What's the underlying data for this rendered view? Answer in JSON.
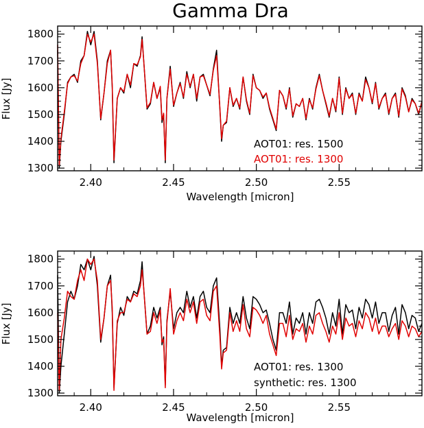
{
  "figure_title": "Gamma Dra",
  "colors": {
    "black": "#000000",
    "red": "#e00000",
    "axis": "#000000",
    "background": "#ffffff"
  },
  "chart_data": [
    {
      "type": "line",
      "title": "Gamma Dra",
      "xlabel": "Wavelength [micron]",
      "ylabel": "Flux [Jy]",
      "xlim": [
        2.38,
        2.6
      ],
      "ylim": [
        1290,
        1830
      ],
      "xticks": [
        2.4,
        2.45,
        2.5,
        2.55
      ],
      "xtick_labels": [
        "2.40",
        "2.45",
        "2.50",
        "2.55"
      ],
      "yticks": [
        1300,
        1400,
        1500,
        1600,
        1700,
        1800
      ],
      "ytick_labels": [
        "1300",
        "1400",
        "1500",
        "1600",
        "1700",
        "1800"
      ],
      "grid": false,
      "legend_position": "lower-right",
      "series": [
        {
          "name": "AOT01: res. 1500",
          "color": "#000000",
          "x": [
            2.38,
            2.381,
            2.382,
            2.384,
            2.386,
            2.388,
            2.39,
            2.392,
            2.394,
            2.396,
            2.398,
            2.4,
            2.402,
            2.404,
            2.406,
            2.408,
            2.41,
            2.412,
            2.413,
            2.414,
            2.416,
            2.418,
            2.42,
            2.422,
            2.424,
            2.426,
            2.428,
            2.43,
            2.431,
            2.432,
            2.434,
            2.436,
            2.438,
            2.44,
            2.442,
            2.443,
            2.444,
            2.445,
            2.446,
            2.448,
            2.45,
            2.452,
            2.454,
            2.456,
            2.458,
            2.46,
            2.462,
            2.464,
            2.466,
            2.468,
            2.47,
            2.472,
            2.474,
            2.476,
            2.478,
            2.479,
            2.48,
            2.482,
            2.484,
            2.486,
            2.488,
            2.49,
            2.492,
            2.494,
            2.496,
            2.498,
            2.5,
            2.502,
            2.504,
            2.506,
            2.508,
            2.51,
            2.512,
            2.514,
            2.516,
            2.518,
            2.52,
            2.522,
            2.524,
            2.526,
            2.528,
            2.53,
            2.532,
            2.534,
            2.536,
            2.538,
            2.54,
            2.542,
            2.544,
            2.546,
            2.548,
            2.55,
            2.552,
            2.554,
            2.556,
            2.558,
            2.56,
            2.562,
            2.564,
            2.566,
            2.568,
            2.57,
            2.572,
            2.574,
            2.576,
            2.578,
            2.58,
            2.582,
            2.584,
            2.586,
            2.588,
            2.59,
            2.592,
            2.594,
            2.596,
            2.598,
            2.6
          ],
          "y": [
            1740,
            1300,
            1400,
            1500,
            1620,
            1640,
            1650,
            1620,
            1700,
            1720,
            1810,
            1760,
            1810,
            1700,
            1480,
            1580,
            1700,
            1740,
            1600,
            1320,
            1560,
            1600,
            1580,
            1650,
            1600,
            1690,
            1680,
            1720,
            1790,
            1700,
            1520,
            1540,
            1620,
            1560,
            1600,
            1470,
            1500,
            1320,
            1560,
            1680,
            1530,
            1580,
            1620,
            1560,
            1660,
            1600,
            1650,
            1550,
            1640,
            1650,
            1610,
            1570,
            1670,
            1740,
            1520,
            1400,
            1460,
            1470,
            1600,
            1530,
            1560,
            1520,
            1640,
            1550,
            1500,
            1650,
            1600,
            1590,
            1560,
            1580,
            1520,
            1480,
            1440,
            1590,
            1570,
            1520,
            1600,
            1490,
            1540,
            1530,
            1560,
            1480,
            1560,
            1520,
            1600,
            1650,
            1590,
            1540,
            1490,
            1560,
            1510,
            1640,
            1500,
            1600,
            1560,
            1580,
            1500,
            1580,
            1550,
            1640,
            1600,
            1540,
            1620,
            1520,
            1560,
            1580,
            1500,
            1560,
            1580,
            1490,
            1600,
            1570,
            1510,
            1560,
            1540,
            1500,
            1550
          ],
          "note_values_estimated": true
        },
        {
          "name": "AOT01: res. 1300",
          "color": "#e00000",
          "x": [
            2.38,
            2.381,
            2.382,
            2.384,
            2.386,
            2.388,
            2.39,
            2.392,
            2.394,
            2.396,
            2.398,
            2.4,
            2.402,
            2.404,
            2.406,
            2.408,
            2.41,
            2.412,
            2.413,
            2.414,
            2.416,
            2.418,
            2.42,
            2.422,
            2.424,
            2.426,
            2.428,
            2.43,
            2.431,
            2.432,
            2.434,
            2.436,
            2.438,
            2.44,
            2.442,
            2.443,
            2.444,
            2.445,
            2.446,
            2.448,
            2.45,
            2.452,
            2.454,
            2.456,
            2.458,
            2.46,
            2.462,
            2.464,
            2.466,
            2.468,
            2.47,
            2.472,
            2.474,
            2.476,
            2.478,
            2.479,
            2.48,
            2.482,
            2.484,
            2.486,
            2.488,
            2.49,
            2.492,
            2.494,
            2.496,
            2.498,
            2.5,
            2.502,
            2.504,
            2.506,
            2.508,
            2.51,
            2.512,
            2.514,
            2.516,
            2.518,
            2.52,
            2.522,
            2.524,
            2.526,
            2.528,
            2.53,
            2.532,
            2.534,
            2.536,
            2.538,
            2.54,
            2.542,
            2.544,
            2.546,
            2.548,
            2.55,
            2.552,
            2.554,
            2.556,
            2.558,
            2.56,
            2.562,
            2.564,
            2.566,
            2.568,
            2.57,
            2.572,
            2.574,
            2.576,
            2.578,
            2.58,
            2.582,
            2.584,
            2.586,
            2.588,
            2.59,
            2.592,
            2.594,
            2.596,
            2.598,
            2.6
          ],
          "y": [
            1760,
            1310,
            1410,
            1510,
            1615,
            1640,
            1645,
            1625,
            1690,
            1720,
            1800,
            1770,
            1800,
            1690,
            1485,
            1580,
            1690,
            1740,
            1610,
            1330,
            1560,
            1600,
            1585,
            1650,
            1610,
            1690,
            1685,
            1715,
            1780,
            1700,
            1525,
            1545,
            1620,
            1560,
            1605,
            1480,
            1505,
            1330,
            1560,
            1670,
            1535,
            1580,
            1615,
            1565,
            1650,
            1605,
            1650,
            1560,
            1640,
            1645,
            1610,
            1575,
            1665,
            1720,
            1525,
            1410,
            1460,
            1475,
            1600,
            1535,
            1560,
            1525,
            1640,
            1555,
            1505,
            1645,
            1600,
            1590,
            1565,
            1580,
            1525,
            1485,
            1445,
            1590,
            1570,
            1525,
            1595,
            1495,
            1540,
            1530,
            1560,
            1485,
            1555,
            1525,
            1595,
            1645,
            1590,
            1545,
            1495,
            1560,
            1515,
            1635,
            1505,
            1595,
            1560,
            1575,
            1505,
            1575,
            1550,
            1630,
            1600,
            1545,
            1615,
            1525,
            1560,
            1575,
            1505,
            1560,
            1575,
            1495,
            1595,
            1565,
            1510,
            1555,
            1540,
            1505,
            1545
          ],
          "note_values_estimated": true
        }
      ],
      "legend": [
        "AOT01: res. 1500",
        "AOT01: res. 1300"
      ]
    },
    {
      "type": "line",
      "title": "",
      "xlabel": "Wavelength [micron]",
      "ylabel": "Flux [Jy]",
      "xlim": [
        2.38,
        2.6
      ],
      "ylim": [
        1290,
        1830
      ],
      "xticks": [
        2.4,
        2.45,
        2.5,
        2.55
      ],
      "xtick_labels": [
        "2.40",
        "2.45",
        "2.50",
        "2.55"
      ],
      "yticks": [
        1300,
        1400,
        1500,
        1600,
        1700,
        1800
      ],
      "ytick_labels": [
        "1300",
        "1400",
        "1500",
        "1600",
        "1700",
        "1800"
      ],
      "grid": false,
      "legend_position": "lower-right",
      "series": [
        {
          "name": "AOT01: res. 1300",
          "color": "#000000",
          "x": [
            2.38,
            2.381,
            2.382,
            2.384,
            2.386,
            2.388,
            2.39,
            2.392,
            2.394,
            2.396,
            2.398,
            2.4,
            2.402,
            2.404,
            2.406,
            2.408,
            2.41,
            2.412,
            2.413,
            2.414,
            2.416,
            2.418,
            2.42,
            2.422,
            2.424,
            2.426,
            2.428,
            2.43,
            2.431,
            2.432,
            2.434,
            2.436,
            2.438,
            2.44,
            2.442,
            2.443,
            2.444,
            2.445,
            2.446,
            2.448,
            2.45,
            2.452,
            2.454,
            2.456,
            2.458,
            2.46,
            2.462,
            2.464,
            2.466,
            2.468,
            2.47,
            2.472,
            2.474,
            2.476,
            2.478,
            2.479,
            2.48,
            2.482,
            2.484,
            2.486,
            2.488,
            2.49,
            2.492,
            2.494,
            2.496,
            2.498,
            2.5,
            2.502,
            2.504,
            2.506,
            2.508,
            2.51,
            2.512,
            2.514,
            2.516,
            2.518,
            2.52,
            2.522,
            2.524,
            2.526,
            2.528,
            2.53,
            2.532,
            2.534,
            2.536,
            2.538,
            2.54,
            2.542,
            2.544,
            2.546,
            2.548,
            2.55,
            2.552,
            2.554,
            2.556,
            2.558,
            2.56,
            2.562,
            2.564,
            2.566,
            2.568,
            2.57,
            2.572,
            2.574,
            2.576,
            2.578,
            2.58,
            2.582,
            2.584,
            2.586,
            2.588,
            2.59,
            2.592,
            2.594,
            2.596,
            2.598,
            2.6
          ],
          "y": [
            1740,
            1300,
            1400,
            1520,
            1640,
            1680,
            1650,
            1700,
            1780,
            1760,
            1800,
            1760,
            1810,
            1700,
            1490,
            1580,
            1700,
            1740,
            1600,
            1320,
            1560,
            1620,
            1590,
            1660,
            1640,
            1680,
            1670,
            1720,
            1790,
            1690,
            1520,
            1550,
            1620,
            1580,
            1620,
            1480,
            1510,
            1330,
            1570,
            1680,
            1540,
            1600,
            1620,
            1600,
            1680,
            1620,
            1660,
            1580,
            1660,
            1680,
            1620,
            1600,
            1700,
            1730,
            1540,
            1400,
            1460,
            1470,
            1620,
            1560,
            1600,
            1560,
            1660,
            1580,
            1540,
            1660,
            1650,
            1630,
            1600,
            1610,
            1560,
            1500,
            1460,
            1600,
            1600,
            1560,
            1640,
            1520,
            1580,
            1560,
            1600,
            1520,
            1600,
            1560,
            1640,
            1650,
            1620,
            1580,
            1520,
            1600,
            1550,
            1650,
            1520,
            1630,
            1600,
            1610,
            1540,
            1620,
            1580,
            1650,
            1630,
            1580,
            1640,
            1560,
            1600,
            1600,
            1530,
            1590,
            1620,
            1520,
            1630,
            1600,
            1540,
            1590,
            1580,
            1530,
            1560
          ],
          "note_values_estimated": true
        },
        {
          "name": "synthetic: res. 1300",
          "color": "#e00000",
          "x": [
            2.38,
            2.381,
            2.382,
            2.384,
            2.386,
            2.388,
            2.39,
            2.392,
            2.394,
            2.396,
            2.398,
            2.4,
            2.402,
            2.404,
            2.406,
            2.408,
            2.41,
            2.412,
            2.413,
            2.414,
            2.416,
            2.418,
            2.42,
            2.422,
            2.424,
            2.426,
            2.428,
            2.43,
            2.431,
            2.432,
            2.434,
            2.436,
            2.438,
            2.44,
            2.442,
            2.443,
            2.444,
            2.445,
            2.446,
            2.448,
            2.45,
            2.452,
            2.454,
            2.456,
            2.458,
            2.46,
            2.462,
            2.464,
            2.466,
            2.468,
            2.47,
            2.472,
            2.474,
            2.476,
            2.478,
            2.479,
            2.48,
            2.482,
            2.484,
            2.486,
            2.488,
            2.49,
            2.492,
            2.494,
            2.496,
            2.498,
            2.5,
            2.502,
            2.504,
            2.506,
            2.508,
            2.51,
            2.512,
            2.514,
            2.516,
            2.518,
            2.52,
            2.522,
            2.524,
            2.526,
            2.528,
            2.53,
            2.532,
            2.534,
            2.536,
            2.538,
            2.54,
            2.542,
            2.544,
            2.546,
            2.548,
            2.55,
            2.552,
            2.554,
            2.556,
            2.558,
            2.56,
            2.562,
            2.564,
            2.566,
            2.568,
            2.57,
            2.572,
            2.574,
            2.576,
            2.578,
            2.58,
            2.582,
            2.584,
            2.586,
            2.588,
            2.59,
            2.592,
            2.594,
            2.596,
            2.598,
            2.6
          ],
          "y": [
            1600,
            1310,
            1500,
            1580,
            1680,
            1660,
            1650,
            1720,
            1760,
            1720,
            1800,
            1780,
            1800,
            1720,
            1500,
            1580,
            1700,
            1720,
            1620,
            1310,
            1570,
            1600,
            1600,
            1650,
            1640,
            1670,
            1660,
            1700,
            1760,
            1690,
            1520,
            1530,
            1600,
            1560,
            1610,
            1490,
            1500,
            1320,
            1560,
            1690,
            1520,
            1570,
            1600,
            1570,
            1650,
            1600,
            1640,
            1560,
            1640,
            1650,
            1590,
            1570,
            1680,
            1700,
            1510,
            1390,
            1450,
            1460,
            1600,
            1530,
            1570,
            1530,
            1630,
            1540,
            1510,
            1620,
            1610,
            1590,
            1560,
            1590,
            1520,
            1480,
            1440,
            1560,
            1560,
            1510,
            1590,
            1500,
            1540,
            1530,
            1560,
            1490,
            1550,
            1520,
            1590,
            1600,
            1560,
            1530,
            1490,
            1550,
            1520,
            1600,
            1500,
            1580,
            1550,
            1560,
            1510,
            1570,
            1540,
            1600,
            1580,
            1530,
            1580,
            1520,
            1550,
            1550,
            1510,
            1540,
            1560,
            1500,
            1570,
            1550,
            1510,
            1550,
            1540,
            1510,
            1530
          ],
          "note_values_estimated": true
        }
      ],
      "legend": [
        "AOT01: res. 1300",
        "synthetic: res. 1300"
      ]
    }
  ]
}
